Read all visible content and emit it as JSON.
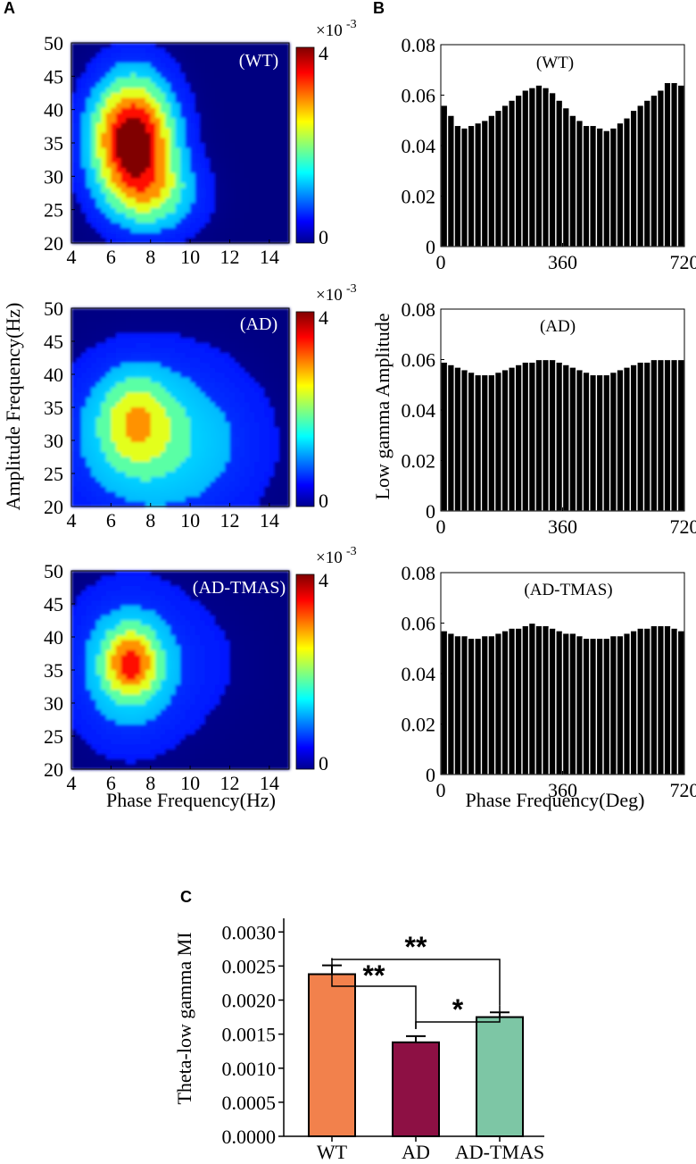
{
  "panels": {
    "a": "A",
    "b": "B",
    "c": "C"
  },
  "chart_data": [
    {
      "panel": "A",
      "type": "heatmap",
      "condition": "(WT)",
      "xlim": [
        4,
        15
      ],
      "ylim": [
        20,
        50
      ],
      "xticks": [
        "4",
        "6",
        "8",
        "10",
        "12",
        "14"
      ],
      "yticks": [
        "20",
        "25",
        "30",
        "35",
        "40",
        "45",
        "50"
      ],
      "colorbar": {
        "min_label": "0",
        "max_label": "4",
        "scale_label": "×10",
        "scale_exp": "-3",
        "min": 0,
        "max": 4
      },
      "hotspots": [
        {
          "phase_hz": 7.1,
          "amp_hz": 35.5,
          "value": 4.3,
          "sx": 1.45,
          "sy": 6.5
        },
        {
          "phase_hz": 8.4,
          "amp_hz": 27.0,
          "value": 1.3,
          "sx": 1.6,
          "sy": 4.0
        }
      ]
    },
    {
      "panel": "A",
      "type": "heatmap",
      "condition": "(AD)",
      "xlim": [
        4,
        15
      ],
      "ylim": [
        20,
        50
      ],
      "xticks": [
        "4",
        "6",
        "8",
        "10",
        "12",
        "14"
      ],
      "yticks": [
        "20",
        "25",
        "30",
        "35",
        "40",
        "45",
        "50"
      ],
      "colorbar": {
        "min_label": "0",
        "max_label": "4",
        "scale_label": "×10",
        "scale_exp": "-3",
        "min": 0,
        "max": 4
      },
      "hotspots": [
        {
          "phase_hz": 7.2,
          "amp_hz": 33.0,
          "value": 1.5,
          "sx": 1.3,
          "sy": 5.0
        },
        {
          "phase_hz": 8.0,
          "amp_hz": 30.0,
          "value": 1.3,
          "sx": 3.2,
          "sy": 9.0
        },
        {
          "phase_hz": 11.0,
          "amp_hz": 29.0,
          "value": 0.3,
          "sx": 2.5,
          "sy": 8.0
        }
      ]
    },
    {
      "panel": "A",
      "type": "heatmap",
      "condition": "(AD-TMAS)",
      "xlim": [
        4,
        15
      ],
      "ylim": [
        20,
        50
      ],
      "xticks": [
        "4",
        "6",
        "8",
        "10",
        "12",
        "14"
      ],
      "yticks": [
        "20",
        "25",
        "30",
        "35",
        "40",
        "45",
        "50"
      ],
      "colorbar": {
        "min_label": "0",
        "max_label": "4",
        "scale_label": "×10",
        "scale_exp": "-3",
        "min": 0,
        "max": 4
      },
      "hotspots": [
        {
          "phase_hz": 7.0,
          "amp_hz": 36.0,
          "value": 2.1,
          "sx": 0.9,
          "sy": 3.5
        },
        {
          "phase_hz": 6.8,
          "amp_hz": 35.5,
          "value": 1.35,
          "sx": 2.0,
          "sy": 8.0
        },
        {
          "phase_hz": 10.5,
          "amp_hz": 36.0,
          "value": 0.3,
          "sx": 2.5,
          "sy": 8.0
        }
      ]
    },
    {
      "panel": "B",
      "type": "bar",
      "condition": "(WT)",
      "xlim": [
        0,
        720
      ],
      "ylim": [
        0,
        0.08
      ],
      "xticks": [
        "0",
        "360",
        "720"
      ],
      "yticks": [
        "0",
        "0.02",
        "0.04",
        "0.06",
        "0.08"
      ],
      "x": [
        10,
        30,
        50,
        70,
        90,
        110,
        130,
        150,
        170,
        190,
        210,
        230,
        250,
        270,
        290,
        310,
        330,
        350,
        370,
        390,
        410,
        430,
        450,
        470,
        490,
        510,
        530,
        550,
        570,
        590,
        610,
        630,
        650,
        670,
        690,
        710
      ],
      "values": [
        0.056,
        0.052,
        0.048,
        0.047,
        0.048,
        0.049,
        0.05,
        0.052,
        0.054,
        0.056,
        0.058,
        0.06,
        0.062,
        0.063,
        0.064,
        0.063,
        0.061,
        0.058,
        0.055,
        0.052,
        0.05,
        0.048,
        0.048,
        0.047,
        0.046,
        0.047,
        0.049,
        0.051,
        0.054,
        0.056,
        0.058,
        0.06,
        0.062,
        0.065,
        0.065,
        0.064
      ]
    },
    {
      "panel": "B",
      "type": "bar",
      "condition": "(AD)",
      "xlim": [
        0,
        720
      ],
      "ylim": [
        0,
        0.08
      ],
      "xticks": [
        "0",
        "360",
        "720"
      ],
      "yticks": [
        "0",
        "0.02",
        "0.04",
        "0.06",
        "0.08"
      ],
      "x": [
        10,
        30,
        50,
        70,
        90,
        110,
        130,
        150,
        170,
        190,
        210,
        230,
        250,
        270,
        290,
        310,
        330,
        350,
        370,
        390,
        410,
        430,
        450,
        470,
        490,
        510,
        530,
        550,
        570,
        590,
        610,
        630,
        650,
        670,
        690,
        710
      ],
      "values": [
        0.059,
        0.058,
        0.057,
        0.056,
        0.055,
        0.054,
        0.054,
        0.054,
        0.055,
        0.056,
        0.057,
        0.058,
        0.059,
        0.059,
        0.06,
        0.06,
        0.06,
        0.059,
        0.058,
        0.057,
        0.056,
        0.055,
        0.054,
        0.054,
        0.054,
        0.055,
        0.056,
        0.057,
        0.058,
        0.059,
        0.059,
        0.06,
        0.06,
        0.06,
        0.06,
        0.06
      ]
    },
    {
      "panel": "B",
      "type": "bar",
      "condition": "(AD-TMAS)",
      "xlim": [
        0,
        720
      ],
      "ylim": [
        0,
        0.08
      ],
      "xticks": [
        "0",
        "360",
        "720"
      ],
      "yticks": [
        "0",
        "0.02",
        "0.04",
        "0.06",
        "0.08"
      ],
      "x": [
        10,
        30,
        50,
        70,
        90,
        110,
        130,
        150,
        170,
        190,
        210,
        230,
        250,
        270,
        290,
        310,
        330,
        350,
        370,
        390,
        410,
        430,
        450,
        470,
        490,
        510,
        530,
        550,
        570,
        590,
        610,
        630,
        650,
        670,
        690,
        710
      ],
      "values": [
        0.057,
        0.056,
        0.055,
        0.055,
        0.054,
        0.054,
        0.055,
        0.055,
        0.056,
        0.057,
        0.058,
        0.058,
        0.059,
        0.06,
        0.059,
        0.059,
        0.058,
        0.057,
        0.056,
        0.056,
        0.055,
        0.054,
        0.054,
        0.054,
        0.054,
        0.055,
        0.055,
        0.056,
        0.057,
        0.058,
        0.058,
        0.059,
        0.059,
        0.059,
        0.058,
        0.057
      ]
    },
    {
      "panel": "C",
      "type": "bar",
      "ylabel": "Theta-low gamma MI",
      "categories": [
        "WT",
        "AD",
        "AD-TMAS"
      ],
      "values": [
        0.00238,
        0.00138,
        0.00175
      ],
      "errors": [
        0.00013,
        9e-05,
        7e-05
      ],
      "colors": [
        "#f2814c",
        "#8d1044",
        "#7dc6a5"
      ],
      "ylim": [
        0,
        0.0032
      ],
      "yticks": [
        "0.0000",
        "0.0005",
        "0.0010",
        "0.0015",
        "0.0020",
        "0.0025",
        "0.0030"
      ],
      "significance": [
        {
          "from": 0,
          "to": 2,
          "label": "**"
        },
        {
          "from": 0,
          "to": 1,
          "label": "**"
        },
        {
          "from": 1,
          "to": 2,
          "label": "*"
        }
      ]
    }
  ],
  "axis_titles": {
    "a_y": "Amplitude Frequency(Hz)",
    "a_x": "Phase Frequency(Hz)",
    "b_y": "Low gamma Amplitude",
    "b_x": "Phase Frequency(Deg)"
  },
  "colors": {
    "axis": "#000000",
    "bar_b": "#000000",
    "bar_edge": "#ffffff"
  }
}
